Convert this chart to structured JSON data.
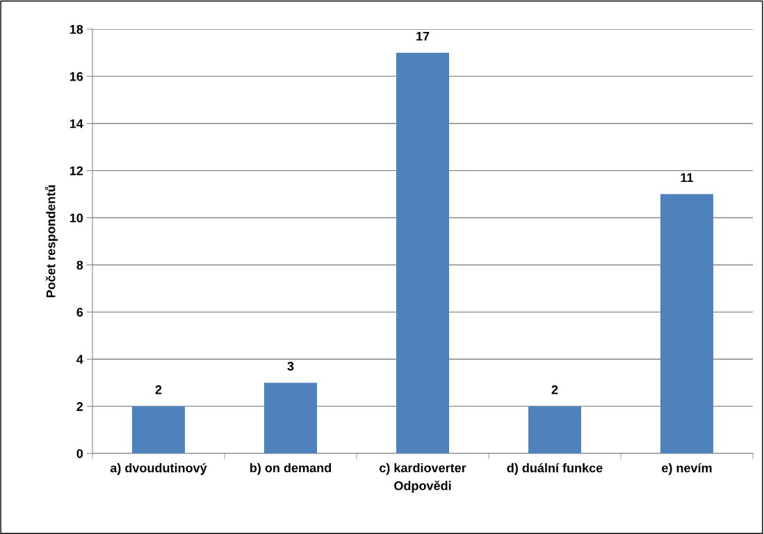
{
  "chart_data": {
    "type": "bar",
    "xlabel": "Odpovědi",
    "ylabel": "Počet respondentů",
    "categories": [
      "a) dvoudutinový",
      "b) on demand",
      "c) kardioverter",
      "d) duální funkce",
      "e) nevím"
    ],
    "values": [
      2,
      3,
      17,
      2,
      11
    ],
    "color": "#4f81bd",
    "ylim": [
      0,
      18
    ],
    "yticks": [
      0,
      2,
      4,
      6,
      8,
      10,
      12,
      14,
      16,
      18
    ],
    "grid": "y",
    "data_labels": true
  }
}
